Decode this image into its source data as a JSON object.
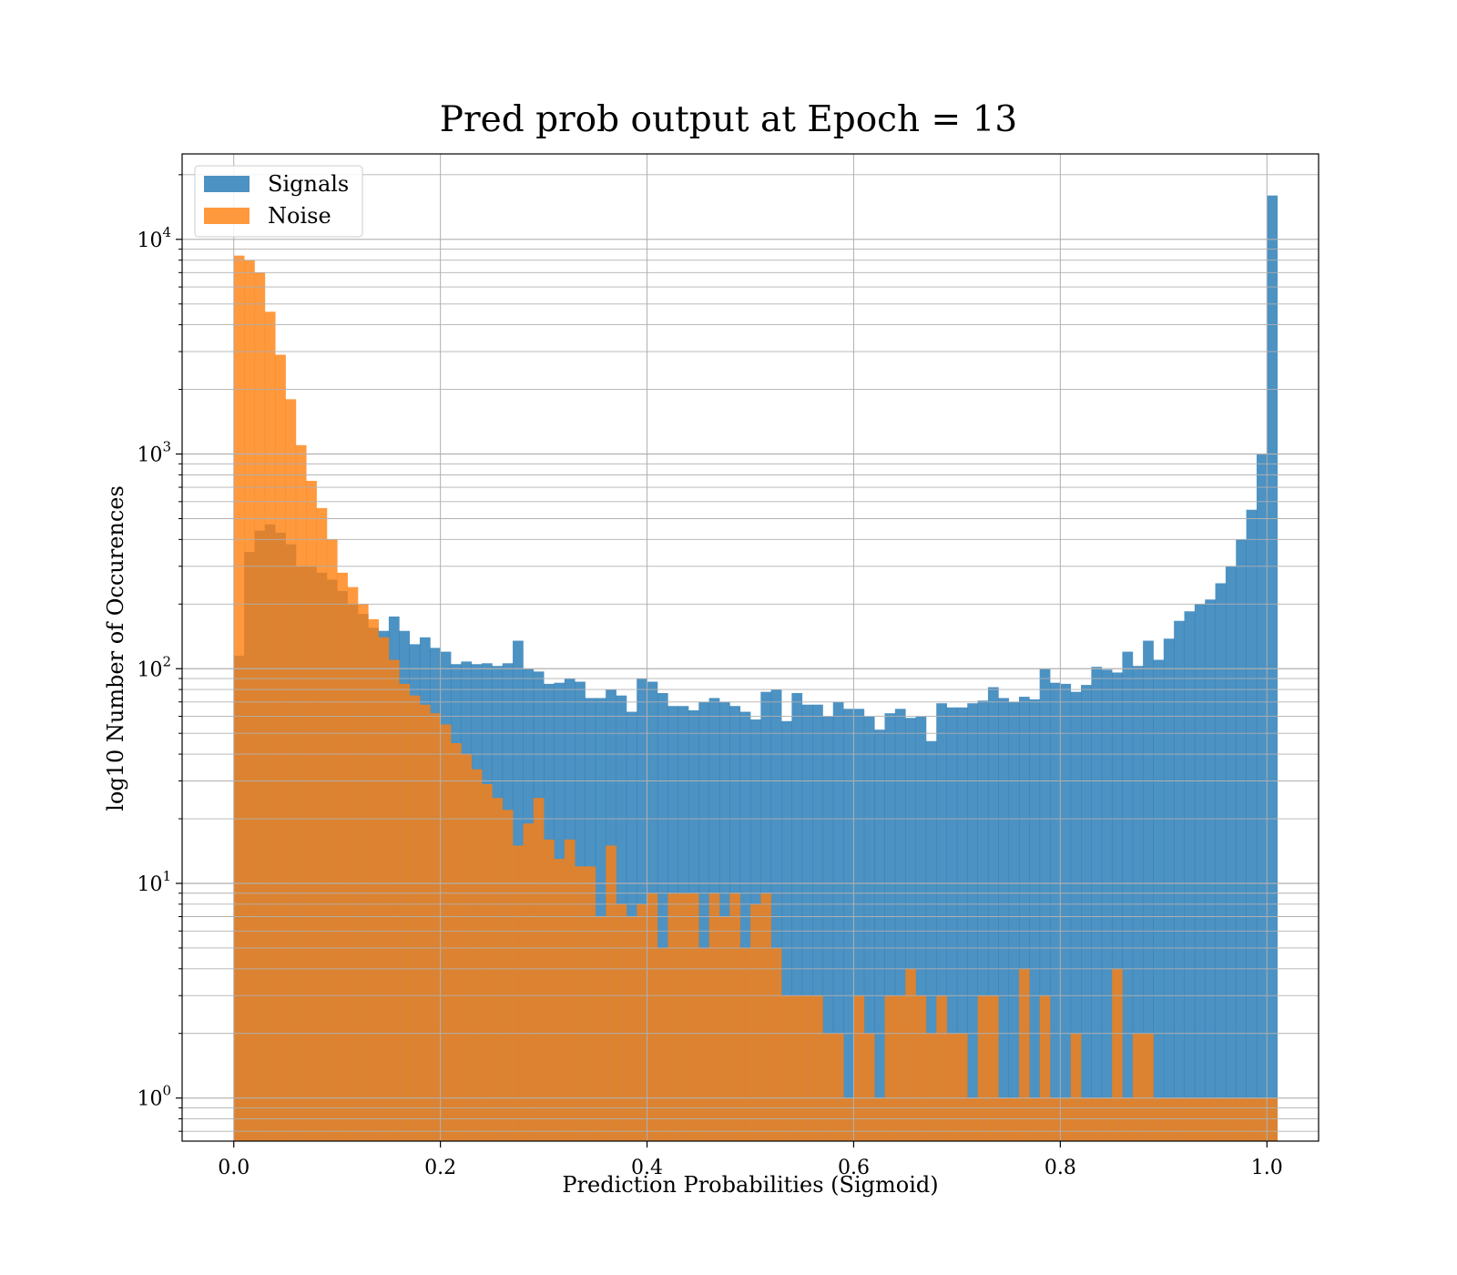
{
  "chart_data": {
    "type": "bar",
    "title": "Pred prob output at Epoch = 13",
    "xlabel": "Prediction Probabilities (Sigmoid)",
    "ylabel": "log10 Number of Occurences",
    "xlim": [
      -0.05,
      1.05
    ],
    "ylim": [
      0.63,
      25000
    ],
    "yscale": "log",
    "grid": true,
    "legend_position": "top-left",
    "x_ticks": [
      {
        "value": 0.0,
        "label": "0.0"
      },
      {
        "value": 0.2,
        "label": "0.2"
      },
      {
        "value": 0.4,
        "label": "0.4"
      },
      {
        "value": 0.6,
        "label": "0.6"
      },
      {
        "value": 0.8,
        "label": "0.8"
      },
      {
        "value": 1.0,
        "label": "1.0"
      }
    ],
    "y_ticks": [
      {
        "value": 1,
        "base": "10",
        "exp": "0"
      },
      {
        "value": 10,
        "base": "10",
        "exp": "1"
      },
      {
        "value": 100,
        "base": "10",
        "exp": "2"
      },
      {
        "value": 1000,
        "base": "10",
        "exp": "3"
      },
      {
        "value": 10000,
        "base": "10",
        "exp": "4"
      }
    ],
    "bin_start": 0.0,
    "bin_width": 0.01,
    "series": [
      {
        "name": "Signals",
        "color": "#1f77b4",
        "alpha": 0.8,
        "values": [
          115,
          350,
          440,
          470,
          430,
          380,
          300,
          300,
          280,
          260,
          230,
          200,
          180,
          155,
          150,
          175,
          150,
          130,
          140,
          125,
          120,
          105,
          108,
          105,
          106,
          103,
          106,
          135,
          100,
          97,
          85,
          86,
          90,
          87,
          73,
          73,
          80,
          75,
          63,
          90,
          87,
          77,
          67,
          67,
          64,
          70,
          73,
          70,
          67,
          63,
          58,
          78,
          80,
          57,
          77,
          68,
          68,
          60,
          70,
          65,
          65,
          60,
          52,
          62,
          65,
          59,
          60,
          46,
          69,
          66,
          66,
          69,
          71,
          82,
          73,
          70,
          74,
          72,
          100,
          86,
          85,
          78,
          84,
          102,
          99,
          96,
          120,
          103,
          135,
          110,
          138,
          167,
          185,
          200,
          210,
          250,
          300,
          400,
          550,
          1000,
          16000
        ]
      },
      {
        "name": "Noise",
        "color": "#ff7f0e",
        "alpha": 0.8,
        "values": [
          8400,
          8000,
          7000,
          4600,
          2900,
          1800,
          1100,
          750,
          560,
          400,
          280,
          240,
          200,
          170,
          140,
          110,
          85,
          75,
          68,
          62,
          55,
          45,
          40,
          34,
          29,
          25,
          22,
          15,
          19,
          25,
          16,
          13,
          16,
          12,
          12,
          7,
          15,
          8,
          7,
          8,
          9,
          5,
          9,
          9,
          9,
          5,
          9,
          7,
          9,
          5,
          8,
          9,
          5,
          3,
          3,
          3,
          3,
          2,
          2,
          1,
          3,
          2,
          1,
          3,
          3,
          4,
          3,
          2,
          3,
          2,
          2,
          1,
          3,
          3,
          1,
          1,
          4,
          1,
          3,
          1,
          1,
          2,
          1,
          1,
          1,
          4,
          1,
          2,
          2,
          1,
          1,
          1,
          1,
          1,
          1,
          1,
          1,
          1,
          1,
          1,
          1
        ]
      }
    ]
  }
}
